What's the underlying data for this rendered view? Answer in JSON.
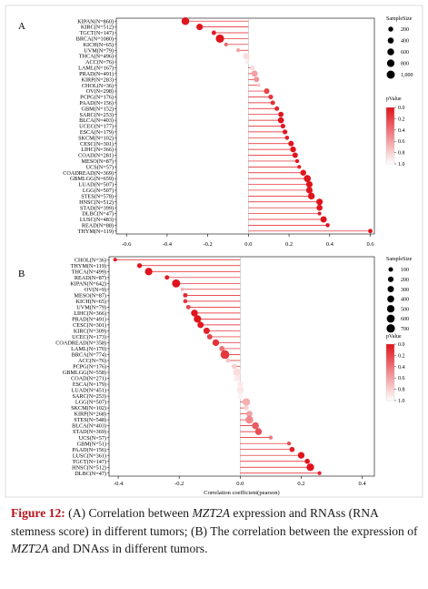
{
  "colors": {
    "high": "#e0141c",
    "low": "#ffffff",
    "line": "#e0141c"
  },
  "caption": {
    "label": "Figure 12:",
    "text_a1": " (A) Correlation between ",
    "gene_1": "MZT2A",
    "text_a2": " expression and RNAss (RNA stemness score) in different tumors; (B) The correlation between the expression of ",
    "gene_2": "MZT2A",
    "text_b": " and DNAss in different tumors."
  },
  "legend": {
    "size_title": "SampleSize",
    "p_title": "pValue"
  },
  "chart_data": [
    {
      "panel_label": "A",
      "type": "scatter",
      "xlabel": "",
      "xlim": [
        -0.65,
        0.62
      ],
      "xticks": [
        -0.6,
        -0.4,
        -0.2,
        0.0,
        0.2,
        0.4,
        0.6
      ],
      "xtick_labels": [
        "-0.6",
        "-0.4",
        "-0.2",
        "0.0",
        "0.2",
        "0.4",
        "0.6"
      ],
      "size_legend": {
        "values": [
          200,
          400,
          600,
          800,
          1000
        ],
        "labels": [
          "200",
          "400",
          "600",
          "800",
          "1,000"
        ]
      },
      "p_legend": {
        "ticks": [
          0.0,
          0.2,
          0.4,
          0.6,
          0.8,
          1.0
        ],
        "labels": [
          "0.0",
          "0.2",
          "0.4",
          "0.6",
          "0.8",
          "1.0"
        ]
      },
      "categories": [
        "KIPAN(N=860)",
        "KIRC(N=512)",
        "TGCT(N=147)",
        "BRCA(N=1080)",
        "KICH(N=65)",
        "UVM(N=79)",
        "THCA(N=496)",
        "ACC(N=76)",
        "LAML(N=167)",
        "PRAD(N=491)",
        "KIRP(N=283)",
        "CHOL(N=36)",
        "OV(N=298)",
        "PCPG(N=176)",
        "PAAD(N=156)",
        "GBM(N=152)",
        "SARC(N=253)",
        "BLCA(N=403)",
        "UCEC(N=177)",
        "ESCA(N=179)",
        "SKCM(N=102)",
        "CESC(N=301)",
        "LIHC(N=366)",
        "COAD(N=281)",
        "MESO(N=87)",
        "UCS(N=57)",
        "COADREAD(N=369)",
        "GBMLGG(N=659)",
        "LUAD(N=507)",
        "LGG(N=507)",
        "STES(N=578)",
        "HNSC(N=512)",
        "STAD(N=399)",
        "DLBC(N=47)",
        "LUSC(N=483)",
        "READ(N=88)",
        "THYM(N=119)"
      ],
      "r": [
        -0.31,
        -0.24,
        -0.17,
        -0.14,
        -0.11,
        -0.05,
        -0.01,
        -0.005,
        0.02,
        0.03,
        0.04,
        0.05,
        0.09,
        0.11,
        0.12,
        0.14,
        0.16,
        0.16,
        0.17,
        0.18,
        0.19,
        0.21,
        0.22,
        0.23,
        0.24,
        0.25,
        0.27,
        0.29,
        0.3,
        0.3,
        0.31,
        0.35,
        0.35,
        0.35,
        0.37,
        0.39,
        0.6
      ],
      "n": [
        860,
        512,
        147,
        1080,
        65,
        79,
        496,
        76,
        167,
        491,
        283,
        36,
        298,
        176,
        156,
        152,
        253,
        403,
        177,
        179,
        102,
        301,
        366,
        281,
        87,
        57,
        369,
        659,
        507,
        507,
        578,
        512,
        399,
        47,
        483,
        88,
        119
      ],
      "p": [
        0.0,
        0.0,
        0.04,
        0.0,
        0.35,
        0.62,
        0.85,
        0.9,
        0.85,
        0.6,
        0.55,
        0.75,
        0.2,
        0.15,
        0.12,
        0.08,
        0.01,
        0.0,
        0.03,
        0.02,
        0.05,
        0.0,
        0.0,
        0.0,
        0.02,
        0.05,
        0.0,
        0.0,
        0.0,
        0.0,
        0.0,
        0.0,
        0.0,
        0.02,
        0.0,
        0.0,
        0.0
      ]
    },
    {
      "panel_label": "B",
      "type": "scatter",
      "xlabel": "Correlation coefficient(pearson)",
      "xlim": [
        -0.43,
        0.44
      ],
      "xticks": [
        -0.4,
        -0.2,
        0.0,
        0.2,
        0.4
      ],
      "xtick_labels": [
        "-0.4",
        "-0.2",
        "0.0",
        "0.2",
        "0.4"
      ],
      "size_legend": {
        "values": [
          100,
          200,
          300,
          400,
          500,
          600,
          700
        ],
        "labels": [
          "100",
          "200",
          "300",
          "400",
          "500",
          "600",
          "700"
        ]
      },
      "p_legend": {
        "ticks": [
          0.0,
          0.2,
          0.4,
          0.6,
          0.8,
          1.0
        ],
        "labels": [
          "0.0",
          "0.2",
          "0.4",
          "0.6",
          "0.8",
          "1.0"
        ]
      },
      "categories": [
        "CHOL(N=36)",
        "THYM(N=119)",
        "THCA(N=499)",
        "READ(N=87)",
        "KIPAN(N=642)",
        "OV(N=9)",
        "MESO(N=87)",
        "KICH(N=65)",
        "UVM(N=79)",
        "LIHC(N=366)",
        "PRAD(N=491)",
        "CESC(N=301)",
        "KIRC(N=309)",
        "UCEC(N=173)",
        "COADREAD(N=358)",
        "LAML(N=170)",
        "BRCA(N=774)",
        "ACC(N=76)",
        "PCPG(N=176)",
        "GBMLGG(N=558)",
        "COAD(N=271)",
        "ESCA(N=179)",
        "LUAD(N=451)",
        "SARC(N=253)",
        "LGG(N=507)",
        "SKCM(N=102)",
        "KIRP(N=268)",
        "STES(N=548)",
        "BLCA(N=403)",
        "STAD(N=369)",
        "UCS(N=57)",
        "GBM(N=51)",
        "PAAD(N=156)",
        "LUSC(N=361)",
        "TGCT(N=147)",
        "HNSC(N=512)",
        "DLBC(N=47)"
      ],
      "r": [
        -0.41,
        -0.33,
        -0.3,
        -0.24,
        -0.21,
        -0.19,
        -0.18,
        -0.18,
        -0.17,
        -0.15,
        -0.14,
        -0.13,
        -0.11,
        -0.1,
        -0.08,
        -0.06,
        -0.05,
        -0.04,
        -0.02,
        -0.01,
        -0.01,
        0.0,
        0.0,
        0.0,
        0.02,
        0.02,
        0.03,
        0.03,
        0.05,
        0.06,
        0.1,
        0.16,
        0.17,
        0.2,
        0.22,
        0.23,
        0.26
      ],
      "n": [
        36,
        119,
        499,
        87,
        642,
        9,
        87,
        65,
        79,
        366,
        491,
        301,
        309,
        173,
        358,
        170,
        774,
        76,
        176,
        558,
        271,
        179,
        451,
        253,
        507,
        102,
        268,
        548,
        403,
        369,
        57,
        51,
        156,
        361,
        147,
        512,
        47
      ],
      "p": [
        0.02,
        0.0,
        0.0,
        0.03,
        0.0,
        0.62,
        0.1,
        0.15,
        0.2,
        0.0,
        0.0,
        0.02,
        0.05,
        0.2,
        0.12,
        0.4,
        0.15,
        0.75,
        0.8,
        0.85,
        0.9,
        0.9,
        0.9,
        0.95,
        0.65,
        0.8,
        0.6,
        0.5,
        0.3,
        0.25,
        0.45,
        0.25,
        0.05,
        0.0,
        0.01,
        0.0,
        0.07
      ]
    }
  ]
}
